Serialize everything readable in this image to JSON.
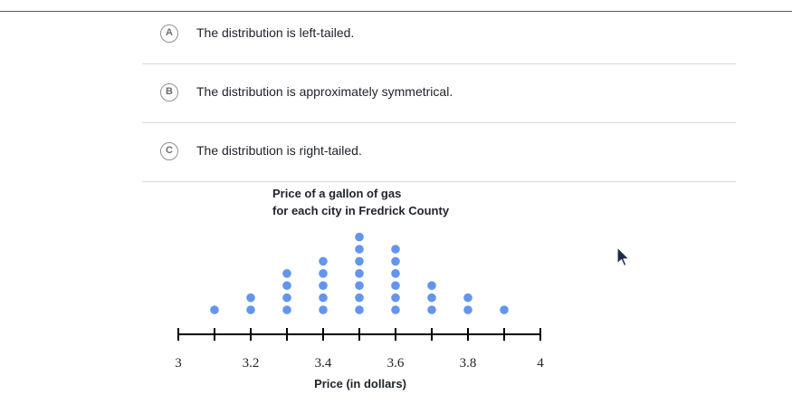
{
  "choices": [
    {
      "letter": "A",
      "text": "The distribution is left-tailed."
    },
    {
      "letter": "B",
      "text": "The distribution is approximately symmetrical."
    },
    {
      "letter": "C",
      "text": "The distribution is right-tailed."
    }
  ],
  "chart_data": {
    "type": "scatter",
    "subtype": "dot-plot",
    "title_line1": "Price of a gallon of gas",
    "title_line2": "for each city in Fredrick County",
    "xlabel": "Price (in dollars)",
    "xlim": [
      3,
      4
    ],
    "tick_values": [
      3,
      3.1,
      3.2,
      3.3,
      3.4,
      3.5,
      3.6,
      3.7,
      3.8,
      3.9,
      4
    ],
    "tick_labels": [
      "3",
      "3.2",
      "3.4",
      "3.6",
      "3.8",
      "4"
    ],
    "tick_label_values": [
      3,
      3.2,
      3.4,
      3.6,
      3.8,
      4
    ],
    "points": [
      {
        "x": 3.1,
        "count": 1
      },
      {
        "x": 3.2,
        "count": 2
      },
      {
        "x": 3.3,
        "count": 4
      },
      {
        "x": 3.4,
        "count": 5
      },
      {
        "x": 3.5,
        "count": 7
      },
      {
        "x": 3.6,
        "count": 6
      },
      {
        "x": 3.7,
        "count": 3
      },
      {
        "x": 3.8,
        "count": 2
      },
      {
        "x": 3.9,
        "count": 1
      }
    ],
    "dot_color": "#6495ed",
    "axis_color": "#000000"
  },
  "colors": {
    "rule": "#5c5c5c",
    "divider": "#d6d8da",
    "letter_border": "#8f9194"
  },
  "icons": {
    "cursor": "mouse-pointer-icon"
  }
}
